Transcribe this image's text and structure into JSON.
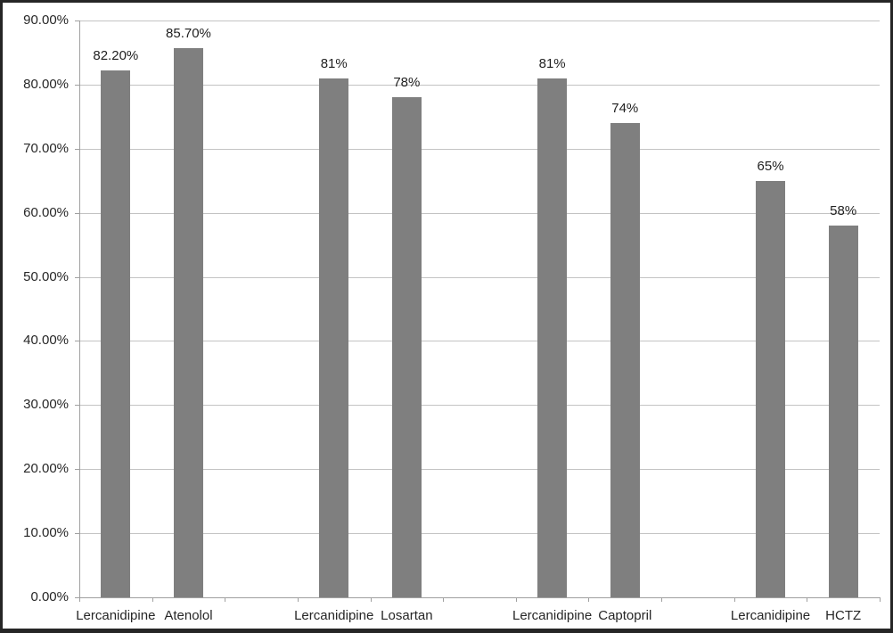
{
  "chart_data": {
    "type": "bar",
    "title": "",
    "categories": [
      "Lercanidipine",
      "Atenolol",
      "Lercanidipine",
      "Losartan",
      "Lercanidipine",
      "Captopril",
      "Lercanidipine",
      "HCTZ"
    ],
    "values": [
      82.2,
      85.7,
      81,
      78,
      81,
      74,
      65,
      58
    ],
    "value_labels": [
      "82.20%",
      "85.70%",
      "81%",
      "78%",
      "81%",
      "74%",
      "65%",
      "58%"
    ],
    "groups": [
      [
        "Lercanidipine",
        "Atenolol"
      ],
      [
        "Lercanidipine",
        "Losartan"
      ],
      [
        "Lercanidipine",
        "Captopril"
      ],
      [
        "Lercanidipine",
        "HCTZ"
      ]
    ],
    "slot_of_bar": [
      0,
      1,
      3,
      4,
      6,
      7,
      9,
      10
    ],
    "n_slots": 11,
    "y_axis": {
      "tick_labels": [
        "0.00%",
        "10.00%",
        "20.00%",
        "30.00%",
        "40.00%",
        "50.00%",
        "60.00%",
        "70.00%",
        "80.00%",
        "90.00%"
      ],
      "min": 0,
      "max": 90,
      "step": 10
    },
    "xlabel": "",
    "ylabel": "",
    "grid": true,
    "legend": "none",
    "colors": {
      "bar": "#7f7f7f",
      "gridline": "#c3c3c3",
      "axis": "#a0a0a0",
      "text": "#262626",
      "frame_border": "#262626",
      "background": "#ffffff"
    }
  }
}
